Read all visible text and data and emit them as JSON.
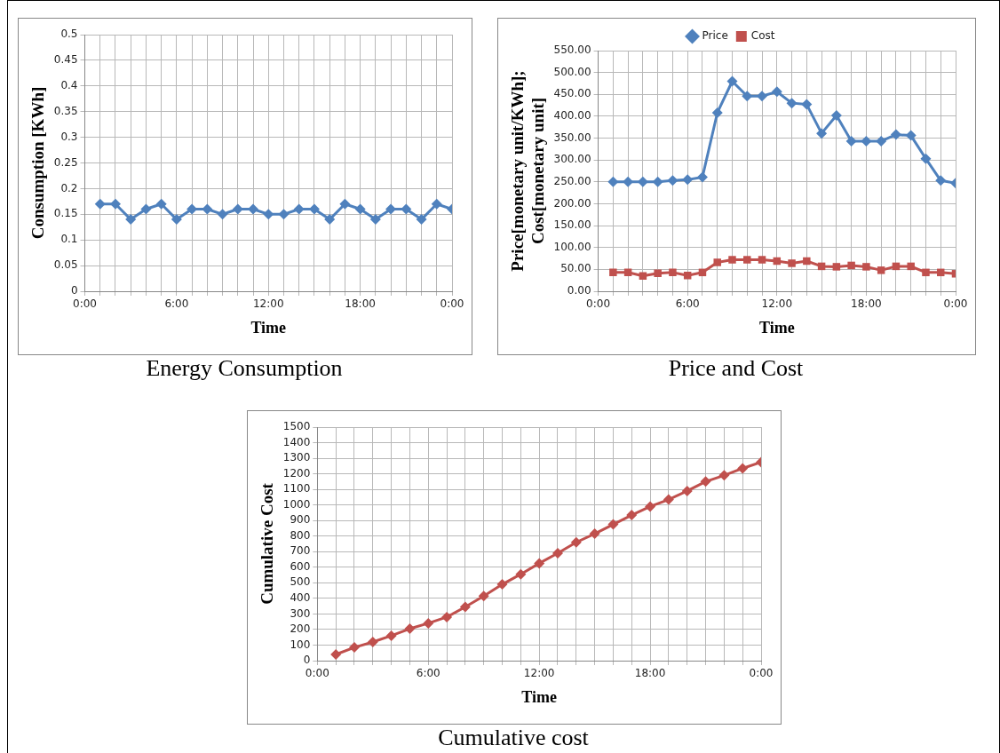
{
  "chart_data": [
    {
      "type": "line",
      "title": "Energy Consumption",
      "xlabel": "Time",
      "ylabel": "Consumption [KWh]",
      "grid": true,
      "marker": "diamond",
      "legend": false,
      "x": [
        1,
        2,
        3,
        4,
        5,
        6,
        7,
        8,
        9,
        10,
        11,
        12,
        13,
        14,
        15,
        16,
        17,
        18,
        19,
        20,
        21,
        22,
        23,
        24
      ],
      "xlim": [
        0,
        24
      ],
      "xticks": [
        {
          "value": 0,
          "label": "0:00"
        },
        {
          "value": 1,
          "label": null
        },
        {
          "value": 2,
          "label": null
        },
        {
          "value": 3,
          "label": null
        },
        {
          "value": 4,
          "label": null
        },
        {
          "value": 5,
          "label": null
        },
        {
          "value": 6,
          "label": "6:00"
        },
        {
          "value": 7,
          "label": null
        },
        {
          "value": 8,
          "label": null
        },
        {
          "value": 9,
          "label": null
        },
        {
          "value": 10,
          "label": null
        },
        {
          "value": 11,
          "label": null
        },
        {
          "value": 12,
          "label": "12:00"
        },
        {
          "value": 13,
          "label": null
        },
        {
          "value": 14,
          "label": null
        },
        {
          "value": 15,
          "label": null
        },
        {
          "value": 16,
          "label": null
        },
        {
          "value": 17,
          "label": null
        },
        {
          "value": 18,
          "label": "18:00"
        },
        {
          "value": 19,
          "label": null
        },
        {
          "value": 20,
          "label": null
        },
        {
          "value": 21,
          "label": null
        },
        {
          "value": 22,
          "label": null
        },
        {
          "value": 23,
          "label": null
        },
        {
          "value": 24,
          "label": "0:00"
        }
      ],
      "ylim": [
        0,
        0.5
      ],
      "yticks": [
        0,
        0.05,
        0.1,
        0.15,
        0.2,
        0.25,
        0.3,
        0.35,
        0.4,
        0.45,
        0.5
      ],
      "series": [
        {
          "color": "#4f81bd",
          "values": [
            0.17,
            0.17,
            0.14,
            0.16,
            0.17,
            0.14,
            0.16,
            0.16,
            0.15,
            0.16,
            0.16,
            0.15,
            0.15,
            0.16,
            0.16,
            0.14,
            0.17,
            0.16,
            0.14,
            0.16,
            0.16,
            0.14,
            0.17,
            0.16
          ]
        }
      ]
    },
    {
      "type": "line",
      "title": "Price and Cost",
      "xlabel": "Time",
      "ylabel": "Price[monetary unit/KWh];\nCost[monetary unit]",
      "grid": true,
      "legend": "top",
      "x": [
        1,
        2,
        3,
        4,
        5,
        6,
        7,
        8,
        9,
        10,
        11,
        12,
        13,
        14,
        15,
        16,
        17,
        18,
        19,
        20,
        21,
        22,
        23,
        24
      ],
      "xlim": [
        0,
        24
      ],
      "xticks": [
        {
          "value": 0,
          "label": "0:00"
        },
        {
          "value": 1,
          "label": null
        },
        {
          "value": 2,
          "label": null
        },
        {
          "value": 3,
          "label": null
        },
        {
          "value": 4,
          "label": null
        },
        {
          "value": 5,
          "label": null
        },
        {
          "value": 6,
          "label": "6:00"
        },
        {
          "value": 7,
          "label": null
        },
        {
          "value": 8,
          "label": null
        },
        {
          "value": 9,
          "label": null
        },
        {
          "value": 10,
          "label": null
        },
        {
          "value": 11,
          "label": null
        },
        {
          "value": 12,
          "label": "12:00"
        },
        {
          "value": 13,
          "label": null
        },
        {
          "value": 14,
          "label": null
        },
        {
          "value": 15,
          "label": null
        },
        {
          "value": 16,
          "label": null
        },
        {
          "value": 17,
          "label": null
        },
        {
          "value": 18,
          "label": "18:00"
        },
        {
          "value": 19,
          "label": null
        },
        {
          "value": 20,
          "label": null
        },
        {
          "value": 21,
          "label": null
        },
        {
          "value": 22,
          "label": null
        },
        {
          "value": 23,
          "label": null
        },
        {
          "value": 24,
          "label": "0:00"
        }
      ],
      "ylim": [
        0,
        550
      ],
      "yticks": [
        {
          "value": 0,
          "label": "0.00"
        },
        {
          "value": 50,
          "label": "50.00"
        },
        {
          "value": 100,
          "label": "100.00"
        },
        {
          "value": 150,
          "label": "150.00"
        },
        {
          "value": 200,
          "label": "200.00"
        },
        {
          "value": 250,
          "label": "250.00"
        },
        {
          "value": 300,
          "label": "300.00"
        },
        {
          "value": 350,
          "label": "350.00"
        },
        {
          "value": 400,
          "label": "400.00"
        },
        {
          "value": 450,
          "label": "450.00"
        },
        {
          "value": 500,
          "label": "500.00"
        },
        {
          "value": 550,
          "label": "550.00"
        }
      ],
      "series": [
        {
          "name": "Price",
          "color": "#4f81bd",
          "marker": "diamond",
          "values": [
            250,
            250,
            250,
            250,
            253,
            255,
            261,
            408,
            480,
            446,
            446,
            456,
            430,
            427,
            361,
            402,
            343,
            343,
            343,
            358,
            356,
            303,
            253,
            247
          ]
        },
        {
          "name": "Cost",
          "color": "#c0504d",
          "marker": "square",
          "values": [
            43,
            43,
            35,
            41,
            43,
            36,
            43,
            66,
            72,
            72,
            72,
            69,
            64,
            69,
            57,
            56,
            59,
            56,
            48,
            57,
            57,
            43,
            43,
            40
          ]
        }
      ]
    },
    {
      "type": "line",
      "title": "Cumulative cost",
      "xlabel": "Time",
      "ylabel": "Cumulative Cost",
      "grid": true,
      "marker": "diamond",
      "legend": false,
      "x": [
        1,
        2,
        3,
        4,
        5,
        6,
        7,
        8,
        9,
        10,
        11,
        12,
        13,
        14,
        15,
        16,
        17,
        18,
        19,
        20,
        21,
        22,
        23,
        24
      ],
      "xlim": [
        0,
        24
      ],
      "xticks": [
        {
          "value": 0,
          "label": "0:00"
        },
        {
          "value": 1,
          "label": null
        },
        {
          "value": 2,
          "label": null
        },
        {
          "value": 3,
          "label": null
        },
        {
          "value": 4,
          "label": null
        },
        {
          "value": 5,
          "label": null
        },
        {
          "value": 6,
          "label": "6:00"
        },
        {
          "value": 7,
          "label": null
        },
        {
          "value": 8,
          "label": null
        },
        {
          "value": 9,
          "label": null
        },
        {
          "value": 10,
          "label": null
        },
        {
          "value": 11,
          "label": null
        },
        {
          "value": 12,
          "label": "12:00"
        },
        {
          "value": 13,
          "label": null
        },
        {
          "value": 14,
          "label": null
        },
        {
          "value": 15,
          "label": null
        },
        {
          "value": 16,
          "label": null
        },
        {
          "value": 17,
          "label": null
        },
        {
          "value": 18,
          "label": "18:00"
        },
        {
          "value": 19,
          "label": null
        },
        {
          "value": 20,
          "label": null
        },
        {
          "value": 21,
          "label": null
        },
        {
          "value": 22,
          "label": null
        },
        {
          "value": 23,
          "label": null
        },
        {
          "value": 24,
          "label": "0:00"
        }
      ],
      "ylim": [
        0,
        1500
      ],
      "yticks": [
        0,
        100,
        200,
        300,
        400,
        500,
        600,
        700,
        800,
        900,
        1000,
        1100,
        1200,
        1300,
        1400,
        1500
      ],
      "series": [
        {
          "color": "#c0504d",
          "values": [
            40,
            85,
            120,
            160,
            205,
            240,
            280,
            345,
            415,
            490,
            555,
            625,
            690,
            760,
            815,
            875,
            935,
            990,
            1035,
            1090,
            1150,
            1190,
            1235,
            1275
          ]
        }
      ]
    }
  ]
}
